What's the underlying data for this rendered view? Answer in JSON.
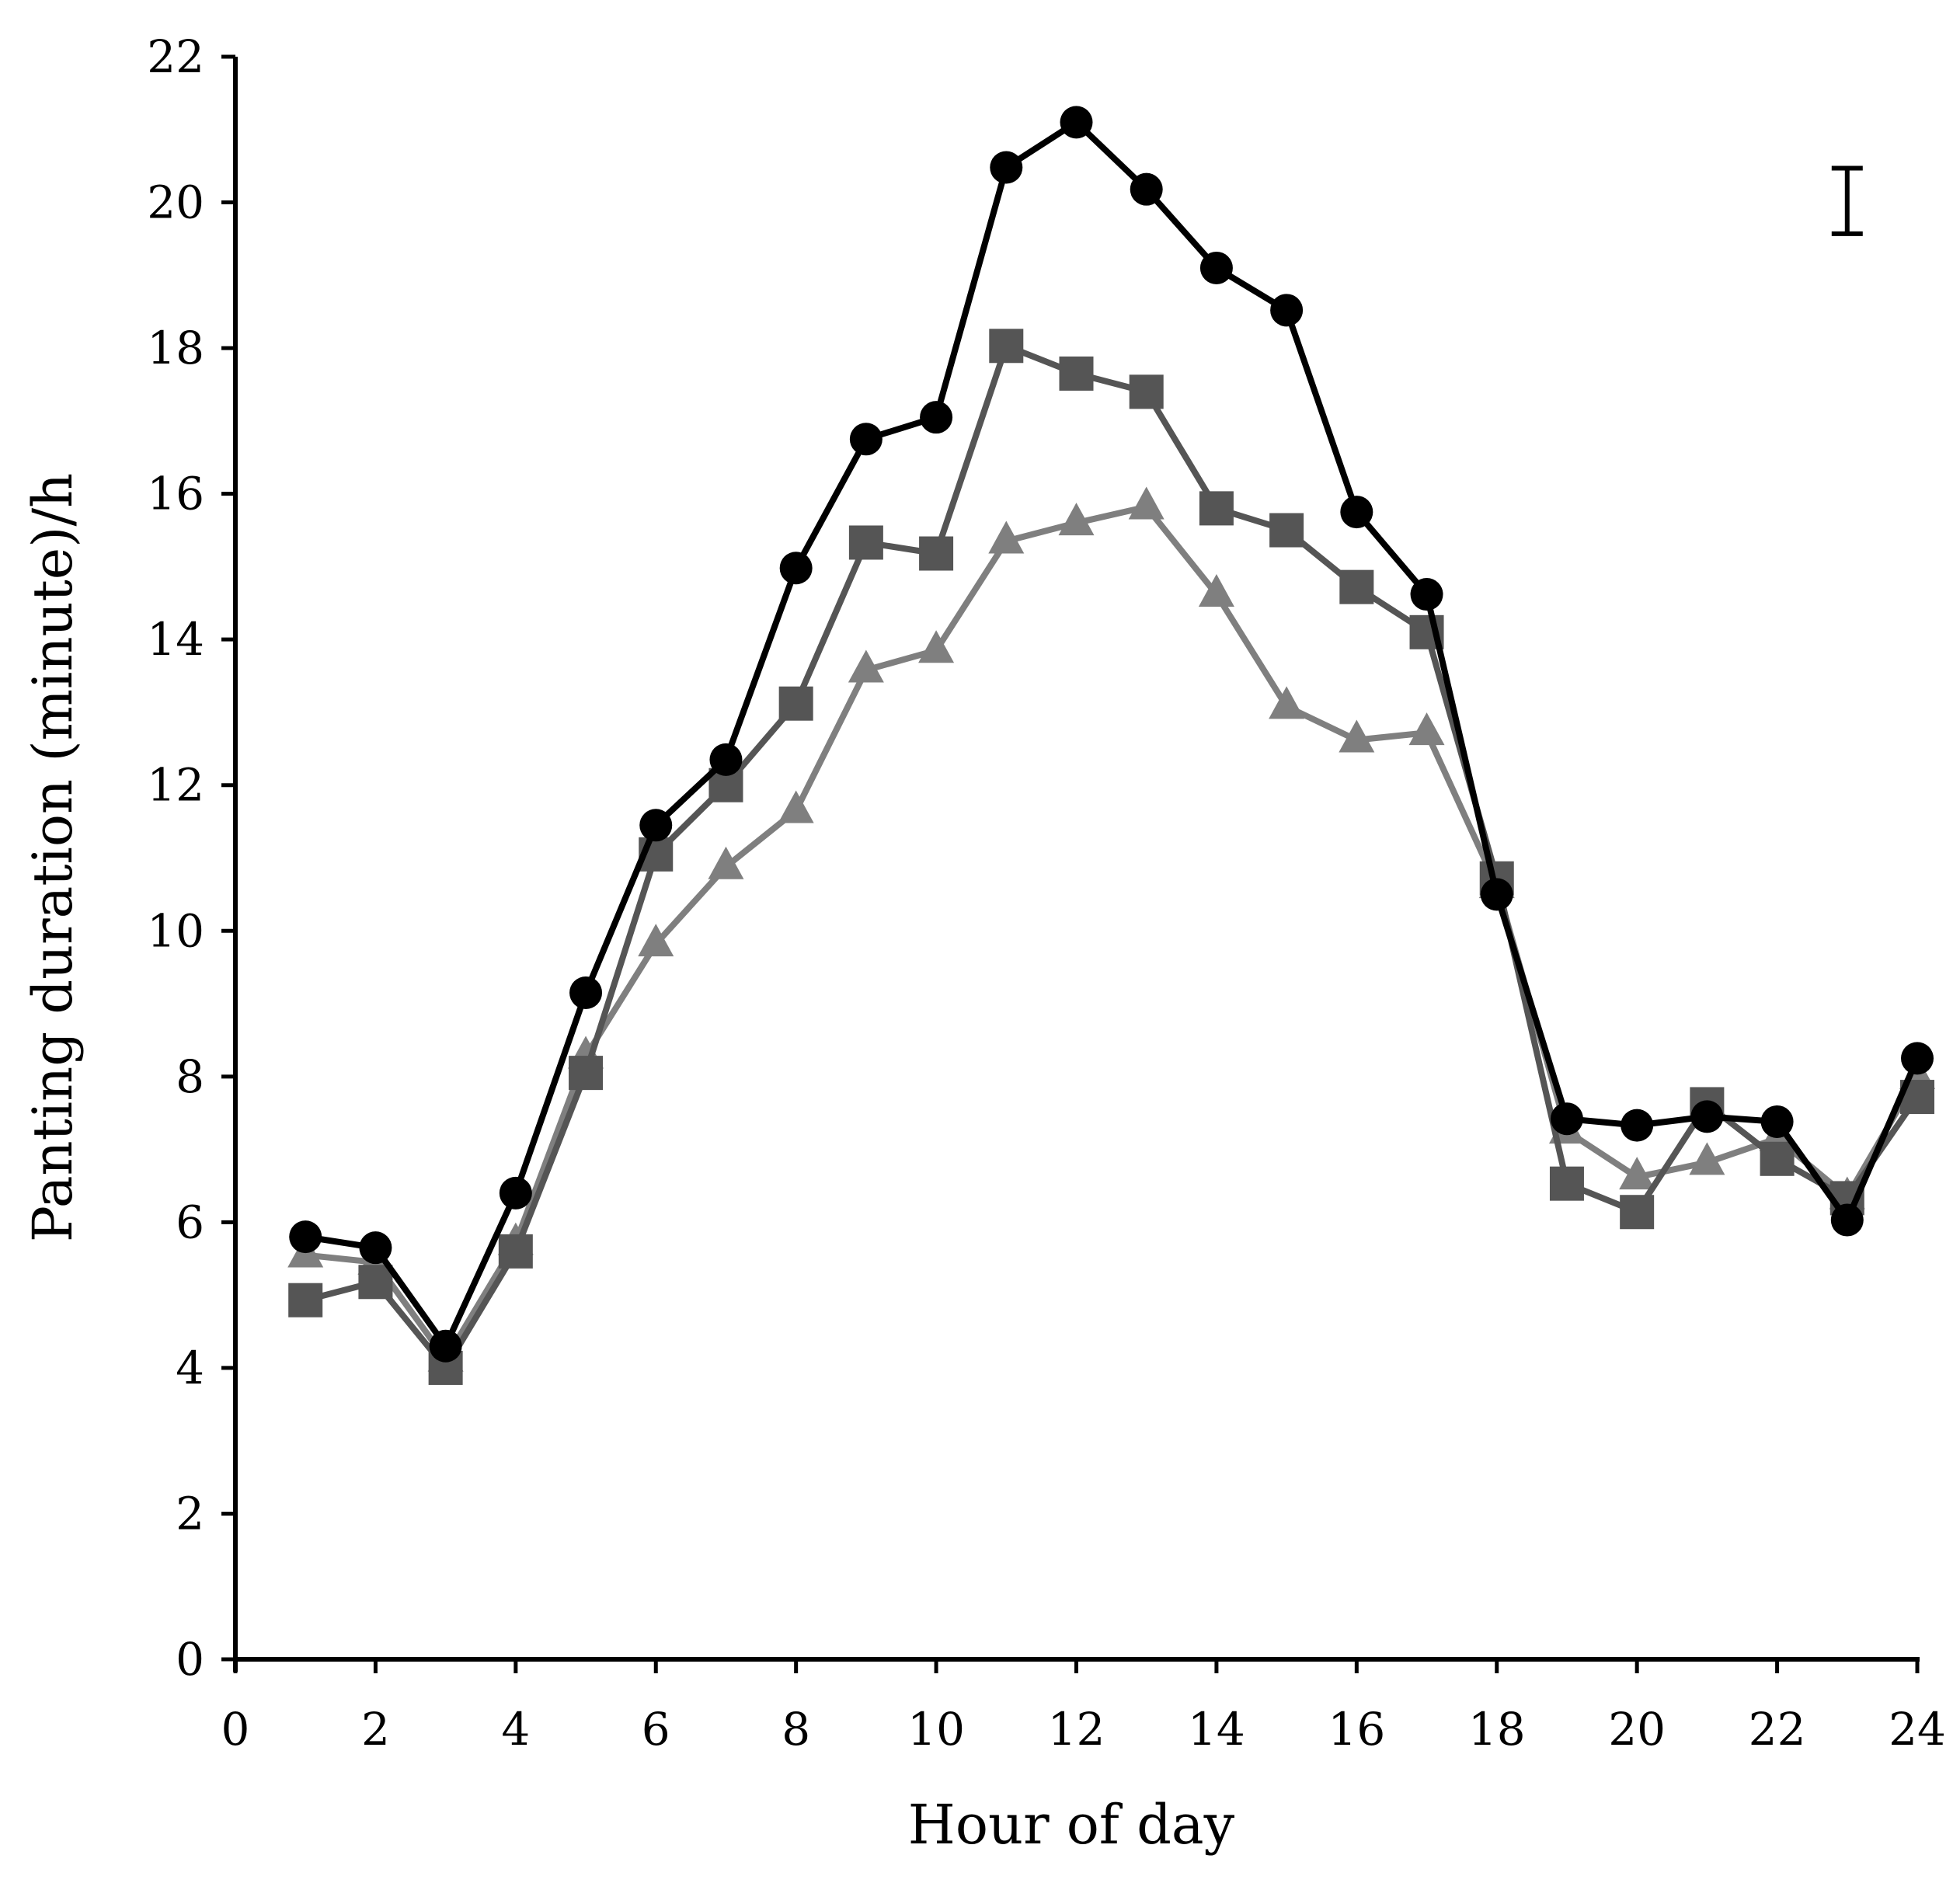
{
  "chart_data": {
    "type": "line",
    "title": "",
    "xlabel": "Hour of day",
    "ylabel": "Panting duration (minute)/h",
    "xlim": [
      0,
      24
    ],
    "ylim": [
      0,
      22
    ],
    "xticks": [
      0,
      2,
      4,
      6,
      8,
      10,
      12,
      14,
      16,
      18,
      20,
      22,
      24
    ],
    "yticks": [
      0,
      2,
      4,
      6,
      8,
      10,
      12,
      14,
      16,
      18,
      20,
      22
    ],
    "grid": false,
    "legend": "none",
    "x": [
      1,
      2,
      3,
      4,
      5,
      6,
      7,
      8,
      9,
      10,
      11,
      12,
      13,
      14,
      15,
      16,
      17,
      18,
      19,
      20,
      21,
      22,
      23,
      24
    ],
    "series": [
      {
        "name": "circles",
        "marker": "circle",
        "color": "#000000",
        "values": [
          5.8,
          5.65,
          4.3,
          6.4,
          9.15,
          11.45,
          12.35,
          14.98,
          16.75,
          17.05,
          20.48,
          21.1,
          20.18,
          19.1,
          18.52,
          15.75,
          14.62,
          10.5,
          7.42,
          7.33,
          7.45,
          7.38,
          6.03,
          8.25
        ]
      },
      {
        "name": "squares",
        "marker": "square",
        "color": "#555555",
        "values": [
          4.93,
          5.18,
          4.0,
          5.6,
          8.05,
          11.05,
          12.0,
          13.12,
          15.33,
          15.18,
          18.03,
          17.65,
          17.4,
          15.8,
          15.5,
          14.72,
          14.1,
          10.72,
          6.53,
          6.14,
          7.62,
          6.87,
          6.33,
          7.72
        ]
      },
      {
        "name": "triangles",
        "marker": "triangle",
        "color": "#7f7f7f",
        "values": [
          5.55,
          5.45,
          4.12,
          5.72,
          8.28,
          9.82,
          10.88,
          11.65,
          13.58,
          13.85,
          15.35,
          15.6,
          15.82,
          14.62,
          13.08,
          12.62,
          12.72,
          10.62,
          7.25,
          6.62,
          6.82,
          7.15,
          6.35,
          8.0
        ]
      }
    ],
    "error_bar": {
      "x": 23,
      "center": 20.02,
      "half_range": 0.45
    }
  }
}
